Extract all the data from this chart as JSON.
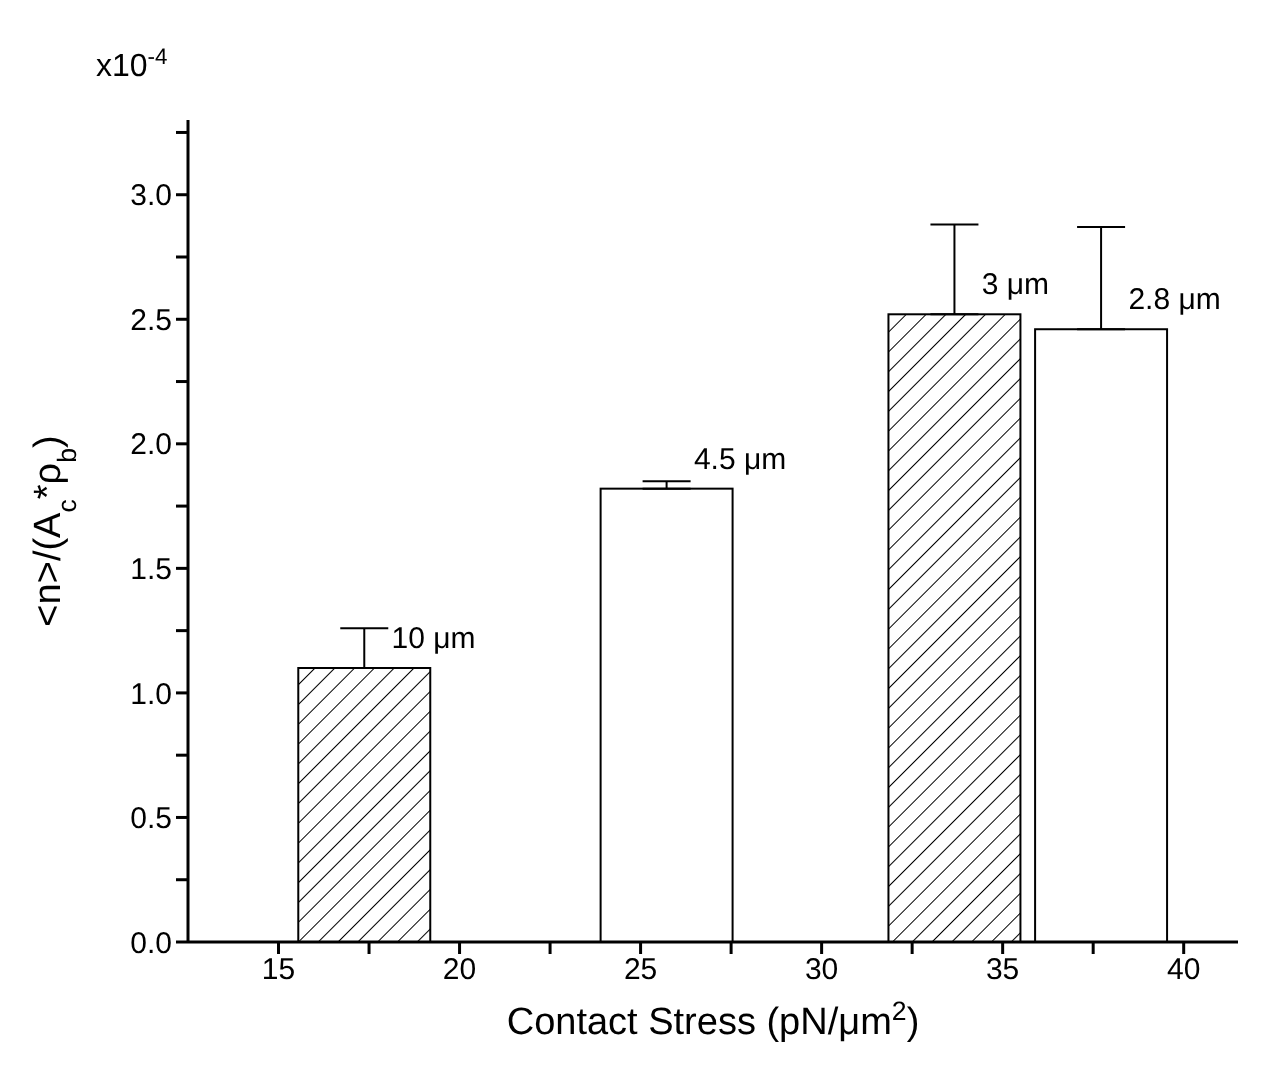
{
  "chart_data": {
    "type": "bar",
    "xlabel": "Contact Stress (pN/μm$^{2}$)",
    "ylabel": "<n>/(A$_{c}$*ρ$_{b}$)",
    "x": [
      17.35,
      25.7,
      33.65,
      37.7
    ],
    "values": [
      1.1,
      1.82,
      2.52,
      2.46
    ],
    "colors": [
      "#000000",
      "#ffffff",
      "#000000",
      "#ffffff"
    ],
    "errors": [
      [
        1.1,
        1.26
      ],
      [
        1.82,
        1.85
      ],
      [
        2.52,
        2.88
      ],
      [
        2.46,
        2.87
      ]
    ],
    "xlim": [
      12.5,
      41.5
    ],
    "xticks": [
      15,
      {
        "value": 17.5,
        "label": null
      },
      20,
      {
        "value": 22.5,
        "label": null
      },
      25,
      {
        "value": 27.5,
        "label": null
      },
      30,
      {
        "value": 32.5,
        "label": null
      },
      35,
      {
        "value": 37.5,
        "label": null
      },
      40
    ],
    "ylim": [
      0,
      3.3
    ],
    "yticks": [
      {
        "value": 0,
        "label": "0.0"
      },
      {
        "value": 0.25,
        "label": null
      },
      0.5,
      {
        "value": 0.75,
        "label": null
      },
      {
        "value": 1,
        "label": "1.0"
      },
      {
        "value": 1.25,
        "label": null
      },
      1.5,
      {
        "value": 1.75,
        "label": null
      },
      {
        "value": 2,
        "label": "2.0"
      },
      {
        "value": 2.25,
        "label": null
      },
      2.5,
      {
        "value": 2.75,
        "label": null
      },
      {
        "value": 3,
        "label": "3.0"
      },
      {
        "value": 3.25,
        "label": null
      }
    ],
    "annotations": [
      "x10$^{-4}$",
      {
        "text": "10 μm",
        "x": 17.35,
        "y": 1.1
      },
      {
        "text": "4.5 μm",
        "x": 25.7,
        "y": 1.82
      },
      {
        "text": "3 μm",
        "x": 33.65,
        "y": 2.52
      },
      {
        "text": "2.8 μm",
        "x": 37.7,
        "y": 2.46
      }
    ]
  }
}
